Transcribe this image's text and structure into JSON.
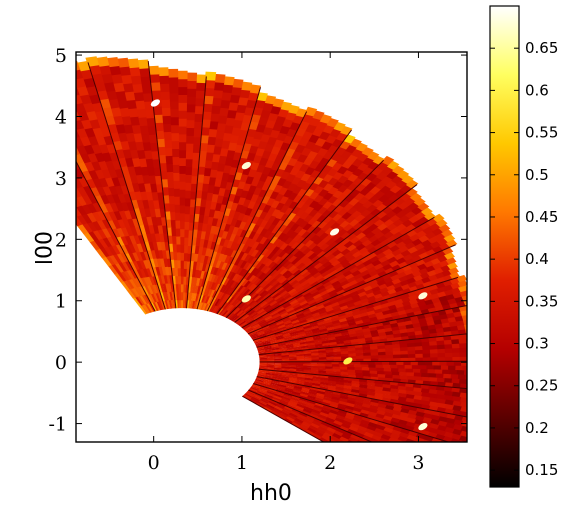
{
  "chart_data": {
    "type": "heatmap",
    "title": "",
    "xlabel": "hh0",
    "ylabel": "00l",
    "xlim": [
      -0.88,
      3.55
    ],
    "ylim": [
      -1.3,
      5.05
    ],
    "x_ticks": [
      "0",
      "1",
      "2",
      "3"
    ],
    "x_tick_values": [
      0,
      1,
      2,
      3
    ],
    "y_ticks": [
      "-1",
      "0",
      "1",
      "2",
      "3",
      "4",
      "5"
    ],
    "y_tick_values": [
      -1,
      0,
      1,
      2,
      3,
      4,
      5
    ],
    "colorbar": {
      "range": [
        0.13,
        0.7
      ],
      "ticks": [
        "0.15",
        "0.2",
        "0.25",
        "0.3",
        "0.35",
        "0.4",
        "0.45",
        "0.5",
        "0.55",
        "0.6",
        "0.65"
      ],
      "tick_values": [
        0.15,
        0.2,
        0.25,
        0.3,
        0.35,
        0.4,
        0.45,
        0.5,
        0.55,
        0.6,
        0.65
      ],
      "colormap": [
        "#000000",
        "#5a0000",
        "#b40000",
        "#e01e00",
        "#ff7800",
        "#ffc800",
        "#ffff60",
        "#ffffff"
      ]
    },
    "fan": {
      "center": [
        0.32,
        0.0
      ],
      "inner_radius": 0.88,
      "outer_radius_deg": [
        [
          -39,
          3.95
        ],
        [
          0,
          3.32
        ],
        [
          20,
          3.35
        ],
        [
          50,
          3.9
        ],
        [
          75,
          4.4
        ],
        [
          95,
          4.85
        ],
        [
          110,
          5.15
        ],
        [
          118,
          5.25
        ]
      ],
      "angle_range_deg": [
        -39,
        118
      ],
      "wedge_count": 20,
      "base_intensity": 0.34
    },
    "bright_spots": [
      {
        "x": 0.02,
        "y": 4.22,
        "value": 0.7
      },
      {
        "x": 1.05,
        "y": 3.2,
        "value": 0.68
      },
      {
        "x": 2.05,
        "y": 2.12,
        "value": 0.69
      },
      {
        "x": 3.05,
        "y": 1.08,
        "value": 0.68
      },
      {
        "x": 1.05,
        "y": 1.03,
        "value": 0.66
      },
      {
        "x": 3.05,
        "y": -1.05,
        "value": 0.68
      },
      {
        "x": 2.2,
        "y": 0.02,
        "value": 0.6
      }
    ]
  }
}
